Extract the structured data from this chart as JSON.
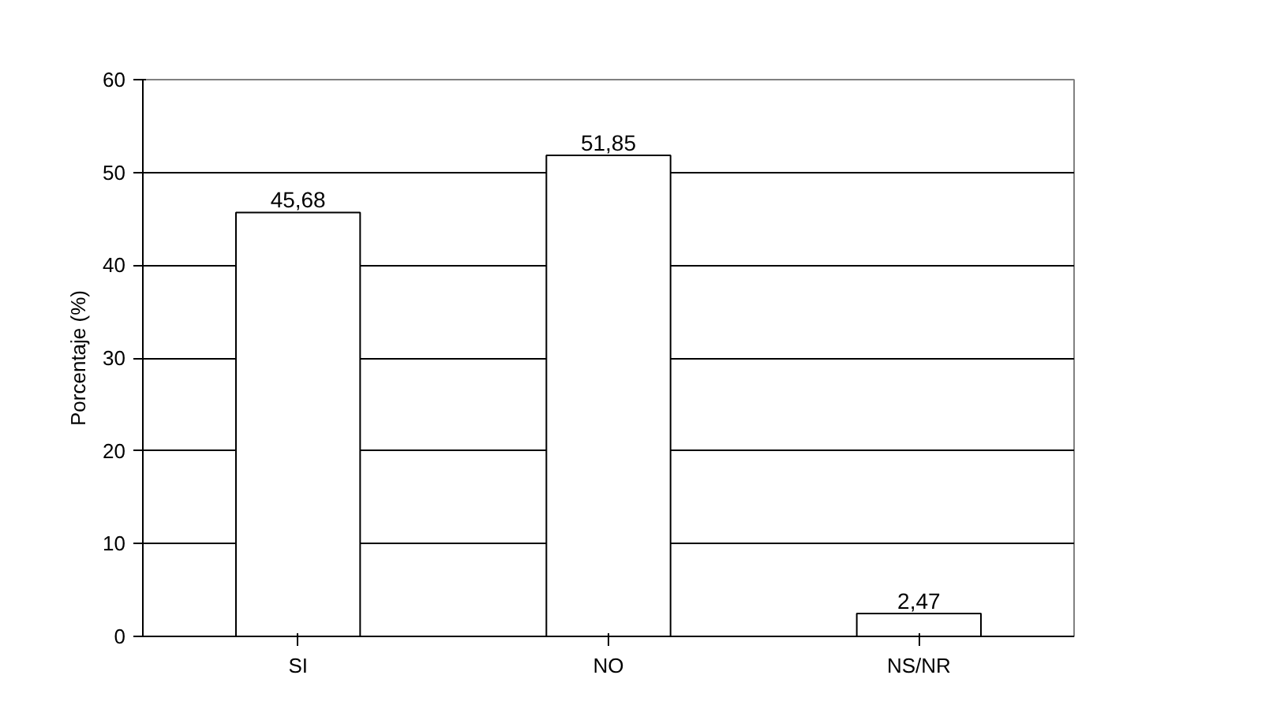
{
  "chart_data": {
    "type": "bar",
    "ylabel": "Porcentaje (%)",
    "categories": [
      "SI",
      "NO",
      "NS/NR"
    ],
    "values": [
      45.68,
      51.85,
      2.47
    ],
    "value_labels": [
      "45,68",
      "51,85",
      "2,47"
    ],
    "color": "#ffffff",
    "ylim": [
      0,
      60
    ],
    "yticks": [
      0,
      10,
      20,
      30,
      40,
      50,
      60
    ],
    "grid": "y"
  }
}
